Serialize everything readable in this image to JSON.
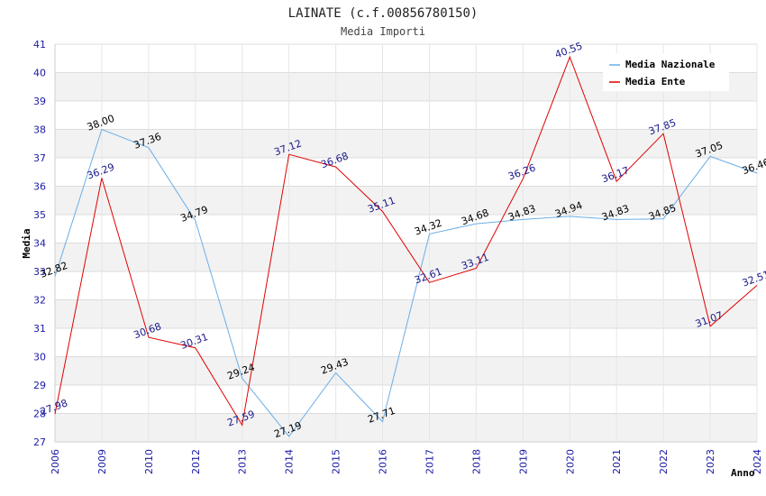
{
  "chart_data": {
    "type": "line",
    "title": "LAINATE (c.f.00856780150)",
    "subtitle": "Media Importi",
    "xlabel": "Anno",
    "ylabel": "Media",
    "categories": [
      "2006",
      "2009",
      "2010",
      "2012",
      "2013",
      "2014",
      "2015",
      "2016",
      "2017",
      "2018",
      "2019",
      "2020",
      "2021",
      "2022",
      "2023",
      "2024"
    ],
    "ylim": [
      27,
      41
    ],
    "yticks": [
      27,
      28,
      29,
      30,
      31,
      32,
      33,
      34,
      35,
      36,
      37,
      38,
      39,
      40,
      41
    ],
    "grid": true,
    "legend_position": "top-right",
    "series": [
      {
        "name": "Media Nazionale",
        "color": "#6aaee8",
        "label_color": "#000000",
        "values": [
          32.82,
          38.0,
          37.36,
          34.79,
          29.24,
          27.19,
          29.43,
          27.71,
          34.32,
          34.68,
          34.83,
          34.94,
          34.83,
          34.85,
          37.05,
          36.46
        ],
        "labels": [
          "32.82",
          "38.00",
          "37.36",
          "34.79",
          "29.24",
          "27.19",
          "29.43",
          "27.71",
          "34.32",
          "34.68",
          "34.83",
          "34.94",
          "34.83",
          "34.85",
          "37.05",
          "36.46"
        ]
      },
      {
        "name": "Media Ente",
        "color": "#e00000",
        "label_color": "#1a1a8c",
        "values": [
          27.98,
          36.29,
          30.68,
          30.31,
          27.59,
          37.12,
          36.68,
          35.11,
          32.61,
          33.11,
          36.26,
          40.55,
          36.17,
          37.85,
          31.07,
          32.51
        ],
        "labels": [
          "27.98",
          "36.29",
          "30.68",
          "30.31",
          "27.59",
          "37.12",
          "36.68",
          "35.11",
          "32.61",
          "33.11",
          "36.26",
          "40.55",
          "36.17",
          "37.85",
          "31.07",
          "32.51"
        ]
      }
    ]
  }
}
